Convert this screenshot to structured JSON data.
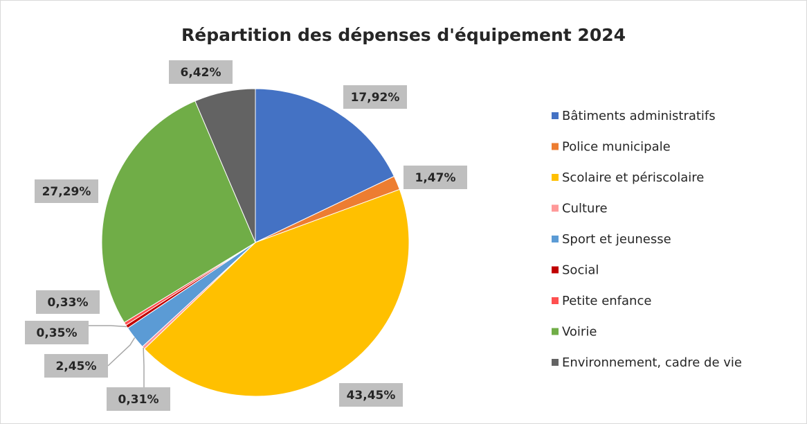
{
  "chart_data": {
    "type": "pie",
    "title": "Répartition des dépenses d'équipement 2024",
    "categories": [
      "Bâtiments administratifs",
      "Police municipale",
      "Scolaire et périscolaire",
      "Culture",
      "Sport et jeunesse",
      "Social",
      "Petite enfance",
      "Voirie",
      "Environnement, cadre de vie"
    ],
    "values": [
      17.92,
      1.47,
      43.45,
      0.31,
      2.45,
      0.35,
      0.33,
      27.29,
      6.42
    ],
    "value_labels": [
      "17,92%",
      "1,47%",
      "43,45%",
      "0,31%",
      "2,45%",
      "0,35%",
      "0,33%",
      "27,29%",
      "6,42%"
    ],
    "colors": [
      "#4472c4",
      "#ed7d31",
      "#ffc000",
      "#ff9999",
      "#5b9bd5",
      "#c00000",
      "#ff5050",
      "#70ad47",
      "#636363"
    ],
    "legend": "right"
  }
}
